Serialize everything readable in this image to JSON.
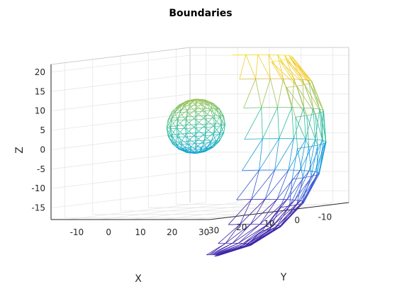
{
  "chart_data": {
    "type": "3d-mesh",
    "title": "Boundaries",
    "xlabel": "X",
    "ylabel": "Y",
    "zlabel": "Z",
    "xlim": [
      -15,
      35
    ],
    "ylim": [
      -15,
      35
    ],
    "zlim": [
      -18,
      22
    ],
    "x_ticks": [
      "30",
      "20",
      "10",
      "0",
      "-10"
    ],
    "y_ticks": [
      "30",
      "20",
      "10",
      "0",
      "-10"
    ],
    "z_ticks": [
      "20",
      "15",
      "10",
      "5",
      "0",
      "-5",
      "-10",
      "-15"
    ],
    "grid": true,
    "series": [
      {
        "center": [
          10,
          10,
          0
        ],
        "radius": 30,
        "mesh": "partial-sphere-outer"
      },
      {
        "center": [
          0,
          0,
          3
        ],
        "radius": 7,
        "mesh": "sphere-inner"
      }
    ],
    "colormap": [
      "#3e26a8",
      "#2f6ee9",
      "#0ea2d9",
      "#2dbc9e",
      "#8ec35e",
      "#f0b936",
      "#f9fb0e"
    ]
  }
}
